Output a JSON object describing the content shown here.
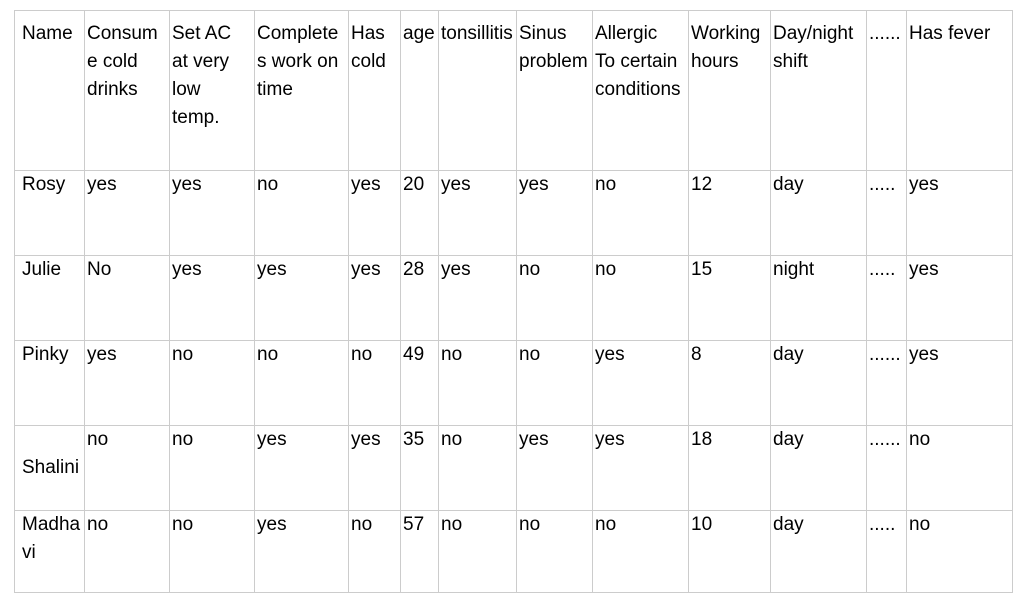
{
  "table": {
    "border_color": "#cccccc",
    "text_color": "#000000",
    "columns": [
      "Name",
      "Consume cold drinks",
      "Set AC at very low temp.",
      "Completes work on time",
      "Has cold",
      "age",
      "tonsillitis",
      "Sinus problem",
      "Allergic\nTo certain conditions",
      "Working hours",
      "Day/night shift",
      "......",
      "Has fever"
    ],
    "rows": [
      [
        "Rosy",
        "yes",
        "yes",
        "no",
        "yes",
        "20",
        "yes",
        "yes",
        "no",
        "12",
        "day",
        ".....",
        "yes"
      ],
      [
        "Julie",
        "No",
        "yes",
        "yes",
        "yes",
        "28",
        "yes",
        "no",
        "no",
        "15",
        "night",
        ".....",
        "yes"
      ],
      [
        "Pinky",
        "yes",
        "no",
        "no",
        "no",
        "49",
        "no",
        "no",
        "yes",
        "8",
        "day",
        "......",
        "yes"
      ],
      [
        "\nShalini",
        "no",
        "no",
        "yes",
        "yes",
        "35",
        "no",
        "yes",
        "yes",
        "18",
        "day",
        "......",
        "no"
      ],
      [
        "Madhavi",
        "no",
        "no",
        "yes",
        "no",
        "57",
        "no",
        "no",
        "no",
        "10",
        "day",
        ".....",
        "no"
      ]
    ]
  }
}
